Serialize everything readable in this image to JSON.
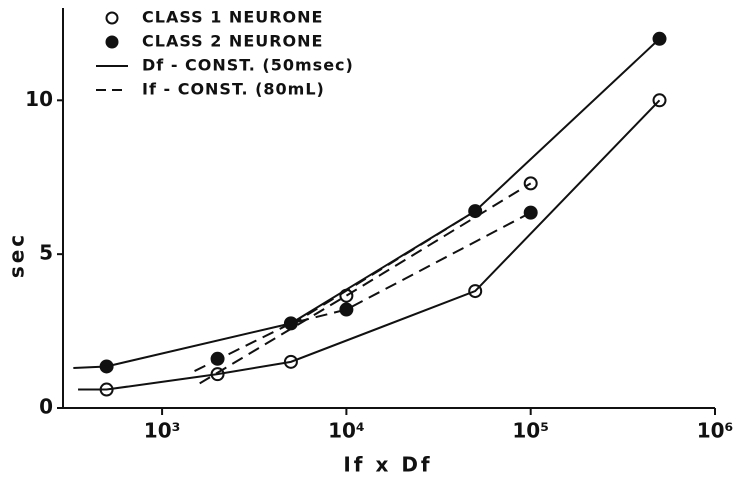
{
  "chart_data": {
    "type": "scatter",
    "x_label": "If x Df",
    "y_label": "sec",
    "xscale": "log",
    "xlim": [
      290,
      1000000
    ],
    "ylim": [
      0,
      13
    ],
    "xticks": [
      {
        "value": 1000,
        "label": "10³"
      },
      {
        "value": 10000,
        "label": "10⁴"
      },
      {
        "value": 100000,
        "label": "10⁵"
      },
      {
        "value": 1000000,
        "label": "10⁶"
      }
    ],
    "yticks": [
      0,
      5,
      10
    ],
    "color": "#111111",
    "series": [
      {
        "name": "CLASS 1 NEURONE",
        "marker": "open",
        "x": [
          500,
          2000,
          5000,
          10000,
          50000,
          100000,
          500000
        ],
        "values": [
          0.6,
          1.1,
          1.5,
          3.65,
          3.8,
          7.3,
          10
        ]
      },
      {
        "name": "CLASS 2 NEURONE",
        "marker": "filled",
        "x": [
          500,
          2000,
          5000,
          10000,
          50000,
          100000,
          500000
        ],
        "values": [
          1.35,
          1.6,
          2.75,
          3.2,
          6.4,
          6.35,
          12
        ]
      },
      {
        "name": "Df - CONST. (50msec)",
        "line": "solid",
        "x": [
          350,
          500,
          2000,
          5000,
          50000,
          500000,
          null,
          330,
          500,
          5000,
          50000,
          500000
        ],
        "values": [
          0.6,
          0.6,
          1.1,
          1.5,
          3.8,
          10,
          null,
          1.3,
          1.35,
          2.75,
          6.4,
          12
        ]
      },
      {
        "name": "If - CONST. (80mL)",
        "line": "dashed",
        "x": [
          1600,
          10000,
          100000,
          null,
          1500,
          5000,
          10000,
          100000,
          null,
          5000,
          50000
        ],
        "values": [
          0.8,
          3.65,
          7.3,
          null,
          1.2,
          2.75,
          3.2,
          6.35,
          null,
          2.7,
          6.4
        ]
      }
    ]
  }
}
